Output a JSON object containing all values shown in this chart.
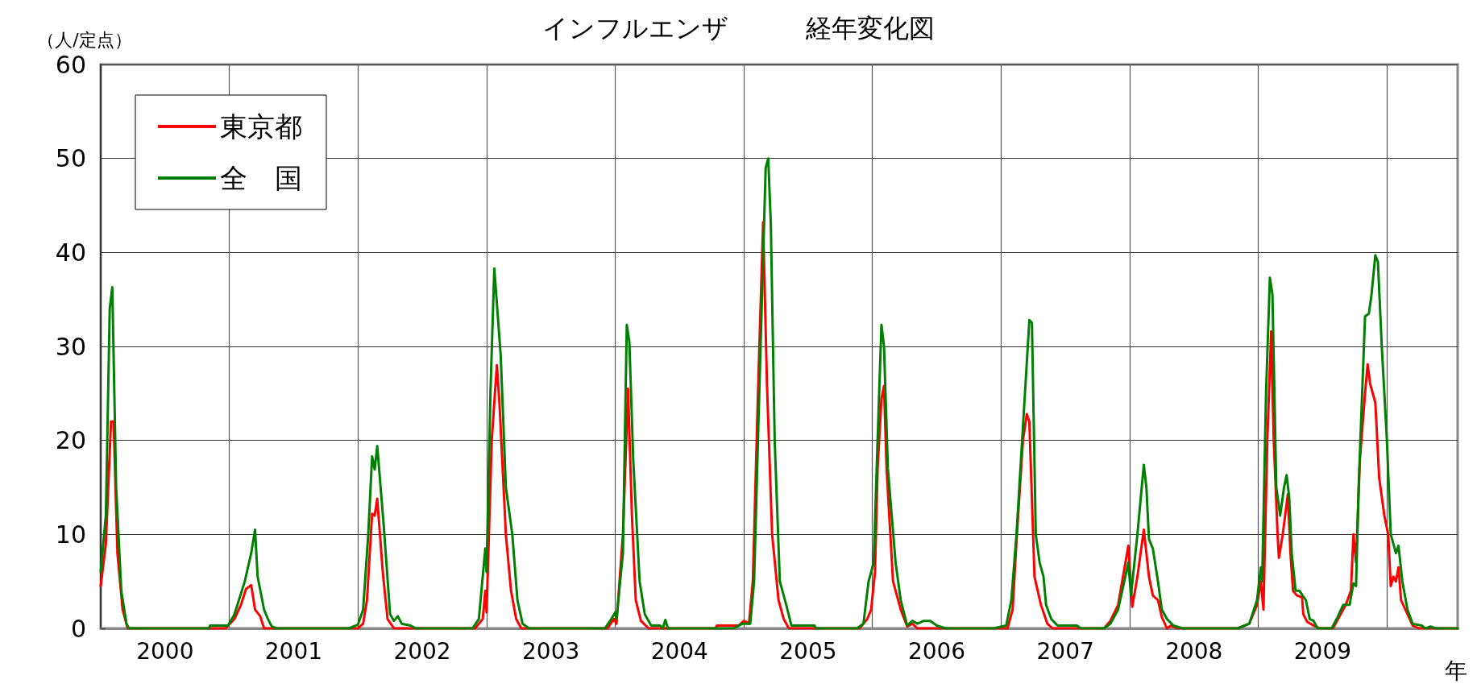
{
  "chart_data": {
    "type": "line",
    "title": "インフルエンザ　　　経年変化図",
    "ylabel": "（人/定点）",
    "xlabel": "年",
    "xlim": [
      2000,
      2010.55
    ],
    "ylim": [
      0,
      60
    ],
    "yticks": [
      0,
      10,
      20,
      30,
      40,
      50,
      60
    ],
    "xticks": [
      {
        "value": 2000.5,
        "label": "2000"
      },
      {
        "value": 2001,
        "label": null
      },
      {
        "value": 2001.5,
        "label": "2001"
      },
      {
        "value": 2002,
        "label": null
      },
      {
        "value": 2002.5,
        "label": "2002"
      },
      {
        "value": 2003,
        "label": null
      },
      {
        "value": 2003.5,
        "label": "2003"
      },
      {
        "value": 2004,
        "label": null
      },
      {
        "value": 2004.5,
        "label": "2004"
      },
      {
        "value": 2005,
        "label": null
      },
      {
        "value": 2005.5,
        "label": "2005"
      },
      {
        "value": 2006,
        "label": null
      },
      {
        "value": 2006.5,
        "label": "2006"
      },
      {
        "value": 2007,
        "label": null
      },
      {
        "value": 2007.5,
        "label": "2007"
      },
      {
        "value": 2008,
        "label": null
      },
      {
        "value": 2008.5,
        "label": "2008"
      },
      {
        "value": 2009,
        "label": null
      },
      {
        "value": 2009.5,
        "label": "2009"
      },
      {
        "value": 2010,
        "label": null
      }
    ],
    "grid": true,
    "legend": "top left",
    "marker": "none",
    "line_style": "solid",
    "series": [
      {
        "name": "東京都",
        "color": "#ff0000",
        "x": [
          2000.0,
          2000.04,
          2000.08,
          2000.1,
          2000.13,
          2000.17,
          2000.21,
          2000.97,
          2001.04,
          2001.09,
          2001.13,
          2001.17,
          2001.2,
          2001.24,
          2001.27,
          2002.0,
          2002.04,
          2002.07,
          2002.11,
          2002.13,
          2002.15,
          2002.19,
          2002.2,
          2002.23,
          2002.28,
          2002.91,
          2002.97,
          2002.99,
          2003.0,
          2003.04,
          2003.08,
          2003.1,
          2003.15,
          2003.19,
          2003.23,
          2003.27,
          2003.94,
          2003.99,
          2004.01,
          2004.06,
          2004.1,
          2004.13,
          2004.16,
          2004.2,
          2004.26,
          2004.78,
          2004.79,
          2004.96,
          2005.0,
          2005.04,
          2005.07,
          2005.11,
          2005.15,
          2005.18,
          2005.22,
          2005.27,
          2005.31,
          2005.35,
          2005.9,
          2005.96,
          2005.99,
          2006.02,
          2006.04,
          2006.07,
          2006.09,
          2006.11,
          2006.16,
          2006.22,
          2006.27,
          2006.31,
          2006.35,
          2007.05,
          2007.09,
          2007.12,
          2007.17,
          2007.2,
          2007.22,
          2007.26,
          2007.31,
          2007.36,
          2007.4,
          2007.8,
          2007.85,
          2007.91,
          2007.99,
          2008.02,
          2008.06,
          2008.11,
          2008.15,
          2008.18,
          2008.22,
          2008.25,
          2008.29,
          2008.32,
          2008.37,
          2008.84,
          2008.93,
          2008.99,
          2009.02,
          2009.04,
          2009.07,
          2009.1,
          2009.12,
          2009.15,
          2009.16,
          2009.19,
          2009.23,
          2009.25,
          2009.27,
          2009.3,
          2009.34,
          2009.35,
          2009.38,
          2009.43,
          2009.48,
          2009.58,
          2009.64,
          2009.68,
          2009.72,
          2009.74,
          2009.76,
          2009.79,
          2009.83,
          2009.85,
          2009.87,
          2009.91,
          2009.94,
          2009.98,
          2010.01,
          2010.03,
          2010.05,
          2010.07,
          2010.09,
          2010.11,
          2010.16,
          2010.2,
          2010.25,
          2010.55
        ],
        "values": [
          4.5,
          9,
          22,
          22,
          8,
          2,
          0,
          0,
          1,
          2.5,
          4.2,
          4.6,
          2,
          1.3,
          0,
          0,
          0.5,
          3,
          12.2,
          12,
          13.8,
          6.5,
          5,
          1,
          0,
          0,
          1,
          4,
          1.7,
          20,
          28,
          24,
          10,
          4,
          1,
          0,
          0,
          1,
          0.5,
          10,
          25.5,
          12,
          3,
          0.8,
          0,
          0,
          0.3,
          0.3,
          0.8,
          0.5,
          5,
          25,
          43.2,
          26,
          10,
          3,
          1,
          0,
          0,
          1,
          2,
          6,
          17,
          24.4,
          25.8,
          17,
          5,
          2,
          0.2,
          0.5,
          0,
          0,
          2,
          9.3,
          20,
          22.8,
          22,
          5.5,
          2.5,
          0.5,
          0,
          0,
          0.8,
          2.5,
          8.8,
          2.3,
          5.5,
          10.5,
          5.5,
          3.5,
          3,
          1.2,
          0,
          0.3,
          0,
          0,
          0.5,
          2.5,
          5,
          2,
          20,
          31.6,
          20,
          10,
          7.5,
          10,
          14.3,
          8,
          4,
          3.5,
          3.3,
          1.5,
          0.7,
          0.3,
          0,
          0,
          1.5,
          2.5,
          4,
          10,
          7,
          18,
          25,
          28.1,
          26,
          24,
          16,
          12,
          10,
          4.5,
          5.5,
          5,
          6.5,
          3,
          1.5,
          0.3,
          0,
          0
        ]
      },
      {
        "name": "全　国",
        "color": "#008000",
        "x": [
          2000.0,
          2000.04,
          2000.07,
          2000.09,
          2000.12,
          2000.16,
          2000.2,
          2000.22,
          2000.84,
          2000.85,
          2000.99,
          2001.04,
          2001.12,
          2001.17,
          2001.2,
          2001.22,
          2001.27,
          2001.3,
          2001.33,
          2001.37,
          2001.93,
          2002.0,
          2002.04,
          2002.08,
          2002.11,
          2002.13,
          2002.15,
          2002.2,
          2002.25,
          2002.28,
          2002.31,
          2002.34,
          2002.41,
          2002.45,
          2002.89,
          2002.94,
          2002.99,
          2003.0,
          2003.03,
          2003.06,
          2003.11,
          2003.15,
          2003.2,
          2003.24,
          2003.28,
          2003.33,
          2003.92,
          2003.97,
          2004.0,
          2004.01,
          2004.06,
          2004.09,
          2004.11,
          2004.14,
          2004.19,
          2004.23,
          2004.28,
          2004.35,
          2004.37,
          2004.39,
          2004.41,
          2004.92,
          2004.99,
          2005.05,
          2005.08,
          2005.12,
          2005.17,
          2005.19,
          2005.21,
          2005.24,
          2005.28,
          2005.33,
          2005.37,
          2005.55,
          2005.56,
          2005.88,
          2005.93,
          2005.97,
          2006.01,
          2006.04,
          2006.07,
          2006.09,
          2006.12,
          2006.18,
          2006.22,
          2006.27,
          2006.31,
          2006.35,
          2006.4,
          2006.45,
          2006.5,
          2006.57,
          2006.94,
          2007.04,
          2007.08,
          2007.12,
          2007.22,
          2007.24,
          2007.27,
          2007.3,
          2007.33,
          2007.35,
          2007.39,
          2007.44,
          2007.59,
          2007.62,
          2007.8,
          2007.85,
          2007.91,
          2007.99,
          2008.01,
          2008.06,
          2008.11,
          2008.13,
          2008.15,
          2008.18,
          2008.22,
          2008.25,
          2008.29,
          2008.34,
          2008.41,
          2008.84,
          2008.93,
          2008.99,
          2009.02,
          2009.03,
          2009.06,
          2009.09,
          2009.11,
          2009.14,
          2009.17,
          2009.2,
          2009.22,
          2009.24,
          2009.26,
          2009.29,
          2009.32,
          2009.37,
          2009.4,
          2009.43,
          2009.46,
          2009.57,
          2009.61,
          2009.66,
          2009.71,
          2009.74,
          2009.76,
          2009.78,
          2009.83,
          2009.86,
          2009.88,
          2009.91,
          2009.93,
          2009.96,
          2010.0,
          2010.03,
          2010.07,
          2010.09,
          2010.12,
          2010.16,
          2010.2,
          2010.27,
          2010.3,
          2010.34,
          2010.38,
          2010.55
        ],
        "values": [
          6,
          12,
          34,
          36.3,
          15,
          4,
          0.5,
          0,
          0,
          0.3,
          0.3,
          1.5,
          5,
          8,
          10.5,
          5.5,
          2,
          1,
          0.2,
          0,
          0,
          0.4,
          2,
          10,
          18.3,
          16.9,
          19.4,
          11,
          1.5,
          0.8,
          1.3,
          0.5,
          0.3,
          0,
          0,
          1,
          8.5,
          6,
          25,
          38.3,
          29,
          15,
          10,
          3,
          0.5,
          0,
          0,
          1,
          1.7,
          1,
          8,
          32.3,
          30.5,
          18,
          5,
          1.5,
          0.3,
          0.3,
          0,
          0.9,
          0,
          0,
          0.5,
          0.5,
          5,
          25,
          49,
          50,
          43,
          20,
          5,
          2.5,
          0.3,
          0.3,
          0,
          0,
          0.5,
          5,
          7,
          20,
          32.3,
          30,
          17,
          7,
          3,
          0.3,
          0.8,
          0.5,
          0.8,
          0.8,
          0.3,
          0,
          0,
          0.3,
          3,
          10,
          32.8,
          32.5,
          10,
          7,
          5.5,
          2.5,
          1,
          0.3,
          0.3,
          0,
          0,
          0.5,
          2,
          7,
          3.5,
          10,
          17.4,
          15,
          9.5,
          8.5,
          5,
          2,
          1,
          0.3,
          0,
          0,
          0.5,
          3,
          6.5,
          5,
          25,
          37.3,
          35.5,
          15,
          12,
          15,
          16.3,
          14,
          8,
          4,
          4,
          3,
          1,
          0.8,
          0,
          0,
          1,
          2.5,
          2.5,
          4.8,
          4.5,
          15,
          33.2,
          33.5,
          35.5,
          39.7,
          39,
          30,
          20,
          10,
          8,
          8.8,
          5,
          2,
          0.5,
          0.3,
          0,
          0.2,
          0,
          0
        ]
      }
    ]
  }
}
